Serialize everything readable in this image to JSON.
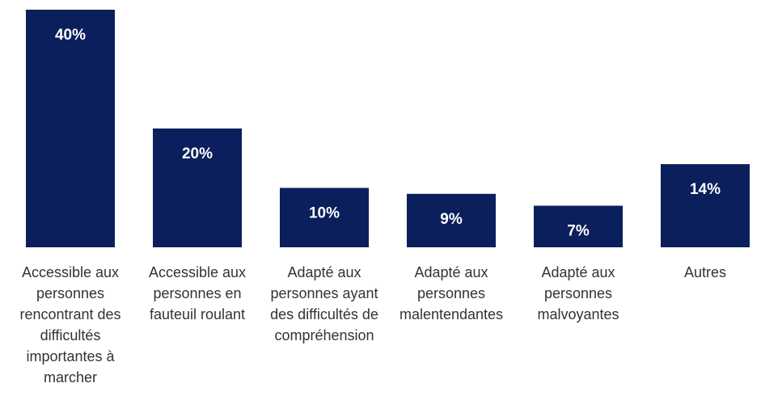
{
  "chart_data": {
    "type": "bar",
    "categories": [
      "Accessible aux personnes rencontrant des difficultés importantes à marcher",
      "Accessible aux personnes en fauteuil roulant",
      "Adapté aux personnes ayant des difficultés de compréhension",
      "Adapté aux personnes malentendantes",
      "Adapté aux personnes malvoyantes",
      "Autres"
    ],
    "values": [
      40,
      20,
      10,
      9,
      7,
      14
    ],
    "value_labels": [
      "40%",
      "20%",
      "10%",
      "9%",
      "7%",
      "14%"
    ],
    "color": "#0b1f5c",
    "label_color": "#ffffff",
    "ylim": [
      0,
      40
    ]
  }
}
